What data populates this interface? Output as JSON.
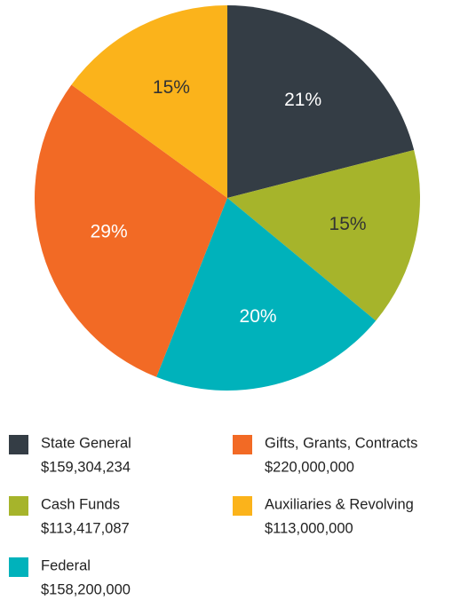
{
  "chart_data": {
    "type": "pie",
    "categories": [
      "State General",
      "Cash Funds",
      "Federal",
      "Gifts, Grants, Contracts",
      "Auxiliaries & Revolving"
    ],
    "values": [
      21,
      15,
      20,
      29,
      15
    ],
    "value_labels": [
      "21%",
      "15%",
      "20%",
      "29%",
      "15%"
    ],
    "amounts": [
      "$159,304,234",
      "$113,417,087",
      "$158,200,000",
      "$220,000,000",
      "$113,000,000"
    ],
    "colors": [
      "#343d45",
      "#a6b42b",
      "#00b2bb",
      "#f26a25",
      "#fbb31b"
    ],
    "start_angle": 0,
    "direction": "clockwise"
  }
}
